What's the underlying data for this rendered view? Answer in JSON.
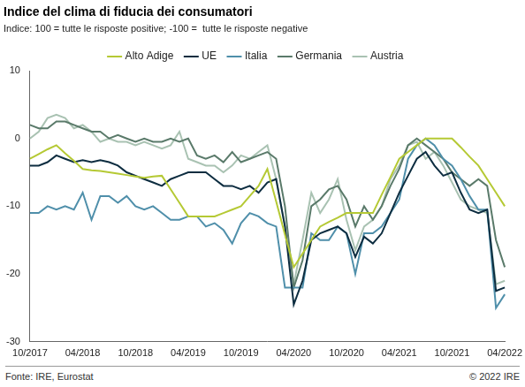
{
  "chart_data": {
    "type": "line",
    "title": "Indice del clima di fiducia dei consumatori",
    "subtitle": "Indice: 100 = tutte le risposte positive; -100 =  tutte le risposte negative",
    "source": "Fonte: IRE, Eurostat",
    "copyright": "© 2022 IRE",
    "categories": [
      "10/2017",
      null,
      null,
      null,
      null,
      null,
      "04/2018",
      null,
      null,
      null,
      null,
      null,
      "10/2018",
      null,
      null,
      null,
      null,
      null,
      "04/2019",
      null,
      null,
      null,
      null,
      null,
      "10/2019",
      null,
      null,
      null,
      null,
      null,
      "04/2020",
      null,
      null,
      null,
      null,
      null,
      "10/2020",
      null,
      null,
      null,
      null,
      null,
      "04/2021",
      null,
      null,
      null,
      null,
      null,
      "10/2021",
      null,
      null,
      null,
      null,
      null,
      "04/2022"
    ],
    "series": [
      {
        "name": "Alto Adige",
        "color": "#b5c934",
        "values": [
          -3,
          -2.3,
          -1.6,
          -1,
          -2.2,
          -3.3,
          -4.5,
          -4.7,
          -4.8,
          -5,
          -5.2,
          -5.4,
          -5.6,
          -5.8,
          -5.6,
          -5.5,
          -7.5,
          -9.5,
          -11.5,
          -11.5,
          -11.5,
          -11.5,
          -11,
          -10.5,
          -10,
          -8.5,
          -7,
          -4.5,
          -9.3,
          -14.2,
          -19,
          -17,
          -15,
          -13,
          -12.3,
          -11.7,
          -11,
          -11,
          -11,
          -11,
          -8.3,
          -5.7,
          -3,
          -2,
          -1,
          0,
          0,
          0,
          0,
          -1.3,
          -2.7,
          -4,
          -6,
          -8,
          -10
        ]
      },
      {
        "name": "UE",
        "color": "#0d2d40",
        "values": [
          -4,
          -4,
          -3.5,
          -2.5,
          -3,
          -3.5,
          -3.2,
          -3.5,
          -3.2,
          -3.5,
          -4,
          -5,
          -5.5,
          -6,
          -6.5,
          -7,
          -6,
          -5.5,
          -5,
          -5,
          -5,
          -6,
          -7,
          -7,
          -7.5,
          -7,
          -8,
          -6.5,
          -6,
          -13,
          -24.5,
          -21,
          -15,
          -14,
          -13.5,
          -13,
          -14,
          -17.5,
          -14.5,
          -15.5,
          -14,
          -11,
          -8,
          -5.5,
          -3,
          -2,
          -4,
          -5.5,
          -5,
          -8,
          -10.5,
          -11,
          -10.5,
          -22.5,
          -22
        ]
      },
      {
        "name": "Italia",
        "color": "#4f8faa",
        "values": [
          -11,
          -11,
          -10,
          -10.5,
          -10,
          -10.5,
          -8,
          -12,
          -8.5,
          -8.5,
          -9.5,
          -8.5,
          -10,
          -10.5,
          -10,
          -11,
          -12,
          -12,
          -11.5,
          -11.5,
          -13,
          -12.5,
          -13.5,
          -15.5,
          -12.5,
          -11,
          -11.5,
          -12.5,
          -13,
          -22,
          -22,
          -22,
          -14,
          -15,
          -15,
          -13,
          -14,
          -20,
          -14,
          -14,
          -13,
          -11,
          -9,
          -3,
          -1,
          0,
          -1,
          -3,
          -4,
          -6,
          -8.5,
          -10.5,
          -10.5,
          -25,
          -23
        ]
      },
      {
        "name": "Germania",
        "color": "#5a7a6a",
        "values": [
          2,
          1.5,
          1.5,
          2.5,
          2.5,
          2,
          1.5,
          1,
          1,
          0,
          0.5,
          0,
          -0.5,
          0,
          -0.5,
          -0.5,
          0,
          -0.5,
          0,
          -2.5,
          -3,
          -2.5,
          -3.5,
          -2,
          -3.5,
          -3,
          -2.5,
          -2,
          -3,
          -10,
          -22,
          -18,
          -10,
          -9,
          -7.5,
          -7,
          -9,
          -13,
          -10,
          -12,
          -10,
          -7,
          -4.5,
          -1,
          0,
          -1,
          -2,
          -3,
          -5,
          -6,
          -7,
          -6,
          -7,
          -15,
          -19
        ]
      },
      {
        "name": "Austria",
        "color": "#a9c2b2",
        "values": [
          0,
          1,
          3,
          3.5,
          3,
          1.5,
          2,
          1,
          -0.5,
          0,
          -0.5,
          -0.5,
          -1,
          -0.5,
          -1,
          -1.5,
          -1,
          1,
          -3,
          -3.5,
          -4,
          -4,
          -5,
          -4,
          -2.5,
          -3,
          -2,
          -1,
          -6,
          -13,
          -21.5,
          -15,
          -8,
          -11,
          -9,
          -6,
          -12,
          -16.5,
          -13,
          -12,
          -10,
          -6,
          -4,
          -1,
          -0.5,
          -3,
          -2,
          -4,
          -6.5,
          -9,
          -10,
          -10.5,
          -11,
          -21.5,
          -21
        ]
      }
    ],
    "ylim": [
      -30,
      10
    ],
    "yticks": [
      -30,
      -20,
      -10,
      0,
      10
    ],
    "grid": false,
    "legend": "top"
  }
}
